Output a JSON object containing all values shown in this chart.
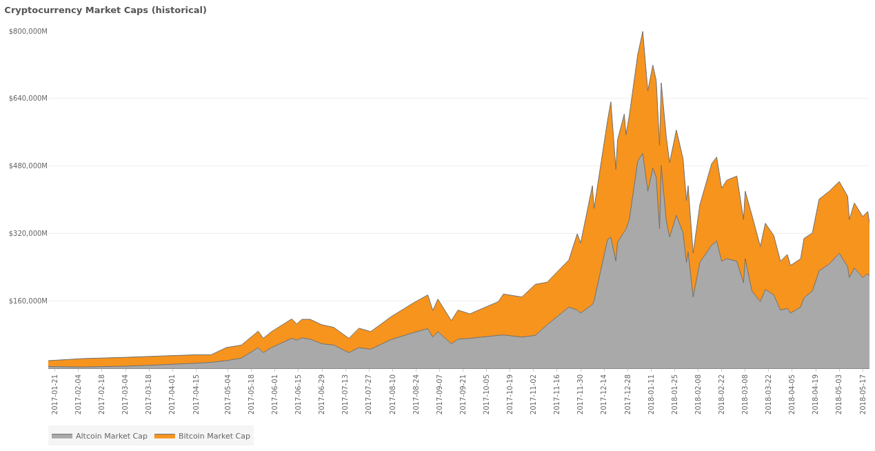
{
  "chart_data": {
    "type": "area",
    "stacked": true,
    "title": "Cryptocurrency Market Caps (historical)",
    "x": [
      "2017-01-17",
      "2017-02-07",
      "2017-03-05",
      "2017-03-18",
      "2017-04-15",
      "2017-04-24",
      "2017-05-03",
      "2017-05-12",
      "2017-05-22",
      "2017-05-25",
      "2017-05-30",
      "2017-06-11",
      "2017-06-14",
      "2017-06-17",
      "2017-06-22",
      "2017-06-29",
      "2017-07-06",
      "2017-07-15",
      "2017-07-21",
      "2017-07-28",
      "2017-08-09",
      "2017-08-22",
      "2017-08-31",
      "2017-09-03",
      "2017-09-06",
      "2017-09-14",
      "2017-09-18",
      "2017-09-25",
      "2017-10-12",
      "2017-10-15",
      "2017-10-26",
      "2017-11-03",
      "2017-11-10",
      "2017-11-23",
      "2017-11-28",
      "2017-11-30",
      "2017-12-07",
      "2017-12-08",
      "2017-12-16",
      "2017-12-18",
      "2017-12-21",
      "2017-12-22",
      "2017-12-26",
      "2017-12-27",
      "2017-12-29",
      "2018-01-03",
      "2018-01-06",
      "2018-01-09",
      "2018-01-12",
      "2018-01-14",
      "2018-01-16",
      "2018-01-17",
      "2018-01-20",
      "2018-01-22",
      "2018-01-26",
      "2018-01-30",
      "2018-02-01",
      "2018-02-02",
      "2018-02-05",
      "2018-02-09",
      "2018-02-16",
      "2018-02-19",
      "2018-02-22",
      "2018-02-25",
      "2018-03-03",
      "2018-03-07",
      "2018-03-08",
      "2018-03-12",
      "2018-03-17",
      "2018-03-20",
      "2018-03-25",
      "2018-03-29",
      "2018-04-02",
      "2018-04-04",
      "2018-04-10",
      "2018-04-12",
      "2018-04-17",
      "2018-04-21",
      "2018-04-27",
      "2018-05-03",
      "2018-05-08",
      "2018-05-09",
      "2018-05-12",
      "2018-05-17",
      "2018-05-20",
      "2018-05-21"
    ],
    "series": [
      {
        "name": "Altcoin Market Cap",
        "color": "#a9a9a9",
        "values": [
          4000,
          3000,
          5000,
          7000,
          12000,
          14000,
          18000,
          24000,
          49000,
          37000,
          49000,
          71000,
          67000,
          72000,
          69000,
          58000,
          55000,
          37000,
          49000,
          45000,
          68000,
          84000,
          94000,
          74000,
          87000,
          58000,
          69000,
          71000,
          78000,
          79000,
          74000,
          78000,
          103000,
          145000,
          138000,
          131000,
          151000,
          160000,
          305000,
          311000,
          254000,
          299000,
          324000,
          330000,
          353000,
          491000,
          510000,
          420000,
          475000,
          453000,
          331000,
          481000,
          350000,
          311000,
          363000,
          321000,
          251000,
          276000,
          169000,
          251000,
          292000,
          302000,
          254000,
          260000,
          254000,
          203000,
          260000,
          183000,
          158000,
          187000,
          174000,
          138000,
          142000,
          131000,
          145000,
          167000,
          183000,
          231000,
          247000,
          273000,
          241000,
          215000,
          238000,
          215000,
          225000,
          219000
        ]
      },
      {
        "name": "Bitcoin Market Cap",
        "color": "#f7941d",
        "values": [
          14000,
          20000,
          21000,
          21000,
          20000,
          18000,
          31000,
          31000,
          39000,
          34000,
          38000,
          46000,
          38000,
          44000,
          47000,
          45000,
          42000,
          34000,
          46000,
          42000,
          54000,
          70000,
          80000,
          63000,
          77000,
          55000,
          69000,
          58000,
          80000,
          97000,
          95000,
          121000,
          101000,
          112000,
          181000,
          166000,
          282000,
          219000,
          282000,
          321000,
          218000,
          243000,
          279000,
          224000,
          247000,
          253000,
          289000,
          238000,
          244000,
          230000,
          198000,
          196000,
          199000,
          177000,
          202000,
          176000,
          147000,
          157000,
          104000,
          137000,
          193000,
          199000,
          173000,
          186000,
          202000,
          150000,
          160000,
          180000,
          131000,
          157000,
          141000,
          116000,
          128000,
          113000,
          115000,
          141000,
          138000,
          170000,
          173000,
          170000,
          167000,
          138000,
          154000,
          145000,
          147000,
          125000
        ]
      }
    ],
    "xlim": [
      "2017-01-17",
      "2018-05-21"
    ],
    "xticks": [
      "2017-01-21",
      "2017-02-04",
      "2017-02-18",
      "2017-03-04",
      "2017-03-18",
      "2017-04-01",
      "2017-04-15",
      "2017-05-04",
      "2017-05-18",
      "2017-06-01",
      "2017-06-15",
      "2017-06-29",
      "2017-07-13",
      "2017-07-27",
      "2017-08-10",
      "2017-08-24",
      "2017-09-07",
      "2017-09-21",
      "2017-10-05",
      "2017-10-19",
      "2017-11-02",
      "2017-11-16",
      "2017-11-30",
      "2017-12-14",
      "2017-12-28",
      "2018-01-11",
      "2018-01-25",
      "2018-02-08",
      "2018-02-22",
      "2018-03-08",
      "2018-03-22",
      "2018-04-05",
      "2018-04-19",
      "2018-05-03",
      "2018-05-17"
    ],
    "ylim": [
      0,
      800000
    ],
    "yticks": [
      {
        "value": 160000,
        "label": "$160,000M"
      },
      {
        "value": 320000,
        "label": "$320,000M"
      },
      {
        "value": 480000,
        "label": "$480,000M"
      },
      {
        "value": 640000,
        "label": "$640,000M"
      },
      {
        "value": 800000,
        "label": "$800,000M"
      }
    ],
    "grid": "y",
    "legend": "bottom left"
  }
}
